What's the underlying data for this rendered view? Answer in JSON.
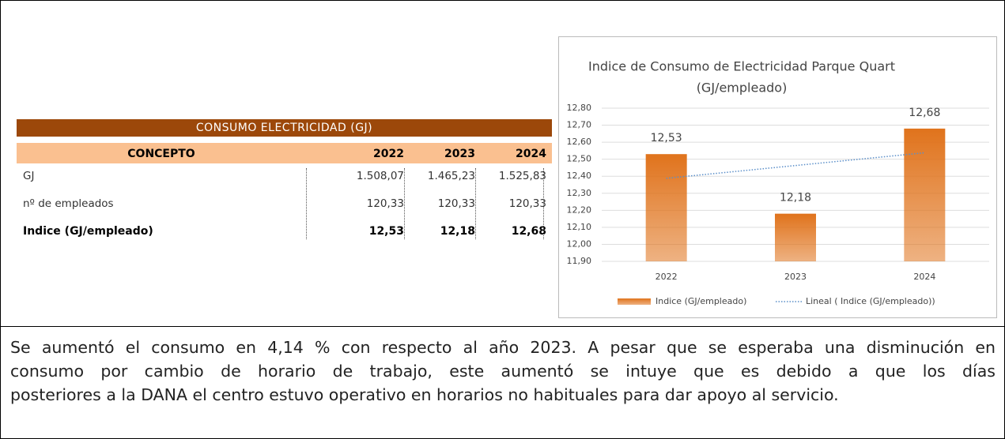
{
  "table": {
    "title": "CONSUMO ELECTRICIDAD (GJ)",
    "header": [
      "CONCEPTO",
      "2022",
      "2023",
      "2024"
    ],
    "rows": [
      [
        "GJ",
        "1.508,07",
        "1.465,23",
        "1.525,83"
      ],
      [
        "nº de empleados",
        "120,33",
        "120,33",
        "120,33"
      ],
      [
        "Indice (GJ/empleado)",
        "12,53",
        "12,18",
        "12,68"
      ]
    ]
  },
  "chart_data": {
    "type": "bar",
    "title": [
      "Indice de Consumo de Electricidad Parque Quart",
      "(GJ/empleado)"
    ],
    "categories": [
      "2022",
      "2023",
      "2024"
    ],
    "series": [
      {
        "name": "Indice (GJ/empleado)",
        "color": "#e0731c",
        "values": [
          12.53,
          12.18,
          12.68
        ],
        "value_labels": [
          "12,53",
          "12,18",
          "12,68"
        ]
      },
      {
        "name": "Lineal ( Indice (GJ/empleado))",
        "color": "#5b8fc9",
        "type": "line",
        "dashed": true,
        "values": [
          12.388,
          12.463,
          12.538
        ]
      }
    ],
    "ylim": [
      11.9,
      12.8
    ],
    "yticks": [
      {
        "value": 11.9,
        "label": "11,90"
      },
      {
        "value": 12.0,
        "label": "12,00"
      },
      {
        "value": 12.1,
        "label": "12,10"
      },
      {
        "value": 12.2,
        "label": "12,20"
      },
      {
        "value": 12.3,
        "label": "12,30"
      },
      {
        "value": 12.4,
        "label": "12,40"
      },
      {
        "value": 12.5,
        "label": "12,50"
      },
      {
        "value": 12.6,
        "label": "12,60"
      },
      {
        "value": 12.7,
        "label": "12,70"
      },
      {
        "value": 12.8,
        "label": "12,80"
      }
    ],
    "grid": true,
    "legend": "bottom"
  },
  "paragraph": [
    "Se aumentó el consumo en 4,14 % con respecto al año 2023.  A pesar que se esperaba una disminución en",
    "consumo por cambio de horario de trabajo, este aumentó se intuye que es debido a que los días",
    "posteriores a la DANA el centro estuvo operativo en horarios no habituales para dar apoyo al servicio."
  ]
}
